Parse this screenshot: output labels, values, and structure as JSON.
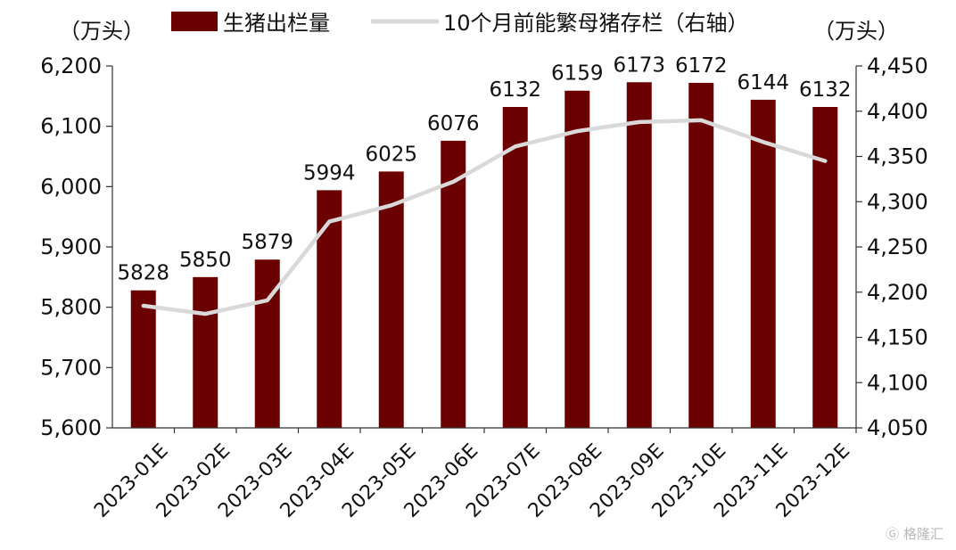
{
  "chart_data": {
    "type": "bar+line",
    "categories": [
      "2023-01E",
      "2023-02E",
      "2023-03E",
      "2023-04E",
      "2023-05E",
      "2023-06E",
      "2023-07E",
      "2023-08E",
      "2023-09E",
      "2023-10E",
      "2023-11E",
      "2023-12E"
    ],
    "series": [
      {
        "name": "生猪出栏量",
        "type": "bar",
        "axis": "left",
        "color": "#6b0000",
        "values": [
          5828,
          5850,
          5879,
          5994,
          6025,
          6076,
          6132,
          6159,
          6173,
          6172,
          6144,
          6132
        ]
      },
      {
        "name": "10个月前能繁母猪存栏（右轴）",
        "type": "line",
        "axis": "right",
        "color": "#d9d9d9",
        "values": [
          4185,
          4176,
          4191,
          4278,
          4296,
          4322,
          4361,
          4378,
          4388,
          4390,
          4366,
          4345
        ]
      }
    ],
    "left_axis": {
      "unit": "（万头）",
      "ylim": [
        5600,
        6200
      ],
      "ticks": [
        5600,
        5700,
        5800,
        5900,
        6000,
        6100,
        6200
      ],
      "tick_labels": [
        "5,600",
        "5,700",
        "5,800",
        "5,900",
        "6,000",
        "6,100",
        "6,200"
      ]
    },
    "right_axis": {
      "unit": "（万头）",
      "ylim": [
        4050,
        4450
      ],
      "ticks": [
        4050,
        4100,
        4150,
        4200,
        4250,
        4300,
        4350,
        4400,
        4450
      ],
      "tick_labels": [
        "4,050",
        "4,100",
        "4,150",
        "4,200",
        "4,250",
        "4,300",
        "4,350",
        "4,400",
        "4,450"
      ]
    },
    "legend_position": "top",
    "grid": false,
    "bar_data_labels": true
  },
  "watermark": "格隆汇"
}
